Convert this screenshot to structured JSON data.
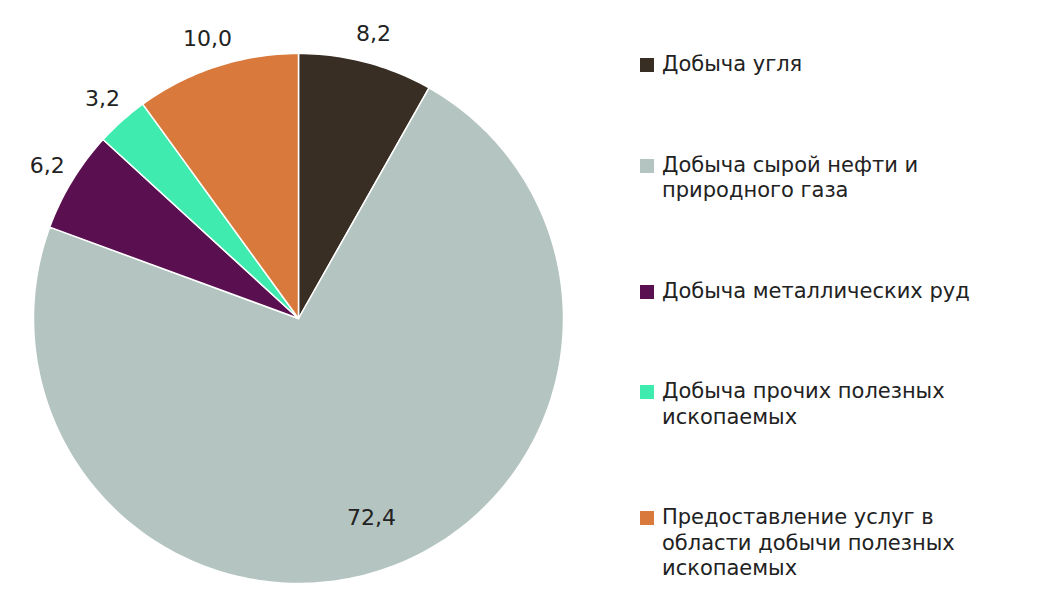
{
  "chart_data": {
    "type": "pie",
    "categories": [
      "Добыча угля",
      "Добыча сырой нефти и природного газа",
      "Добыча металлических руд",
      "Добыча прочих полезных ископаемых",
      "Предоставление услуг в области добычи полезных ископаемых"
    ],
    "values": [
      8.2,
      72.4,
      6.2,
      3.2,
      10.0
    ],
    "value_labels": [
      "8,2",
      "72,4",
      "6,2",
      "3,2",
      "10,0"
    ],
    "colors": [
      "#382e24",
      "#b3c4c1",
      "#5a0f50",
      "#40ebb0",
      "#d97a3c"
    ],
    "data_labels": true,
    "legend": "right"
  }
}
